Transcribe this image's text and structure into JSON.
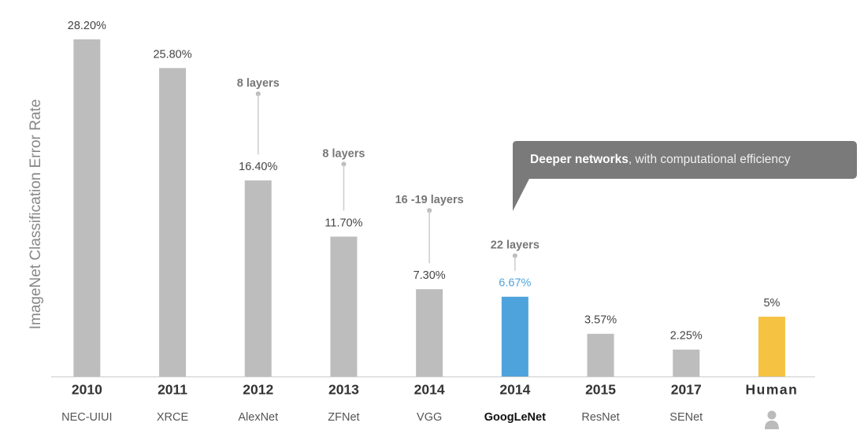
{
  "chart_data": {
    "type": "bar",
    "y_label": "ImageNet Classification Error Rate",
    "categories": [
      "2010",
      "2011",
      "2012",
      "2013",
      "2014",
      "2014",
      "2015",
      "2017",
      "Human"
    ],
    "names": [
      "NEC-UIUI",
      "XRCE",
      "AlexNet",
      "ZFNet",
      "VGG",
      "GoogLeNet",
      "ResNet",
      "SENet",
      null
    ],
    "values": [
      28.2,
      25.8,
      16.4,
      11.7,
      7.3,
      6.67,
      3.57,
      2.25,
      5
    ],
    "value_labels": [
      "28.20%",
      "25.80%",
      "16.40%",
      "11.70%",
      "7.30%",
      "6.67%",
      "3.57%",
      "2.25%",
      "5%"
    ],
    "colors": [
      "#bdbdbd",
      "#bdbdbd",
      "#bdbdbd",
      "#bdbdbd",
      "#bdbdbd",
      "#4fa3dc",
      "#bdbdbd",
      "#bdbdbd",
      "#f5c242"
    ],
    "value_label_colors": [
      "#444",
      "#444",
      "#444",
      "#444",
      "#444",
      "#4fa3dc",
      "#444",
      "#444",
      "#444"
    ],
    "layer_labels": [
      null,
      null,
      "8 layers",
      "8 layers",
      "16 -19 layers",
      "22 layers",
      null,
      null,
      null
    ],
    "callout": {
      "bold": "Deeper networks",
      "text": ", with computational efficiency"
    }
  }
}
